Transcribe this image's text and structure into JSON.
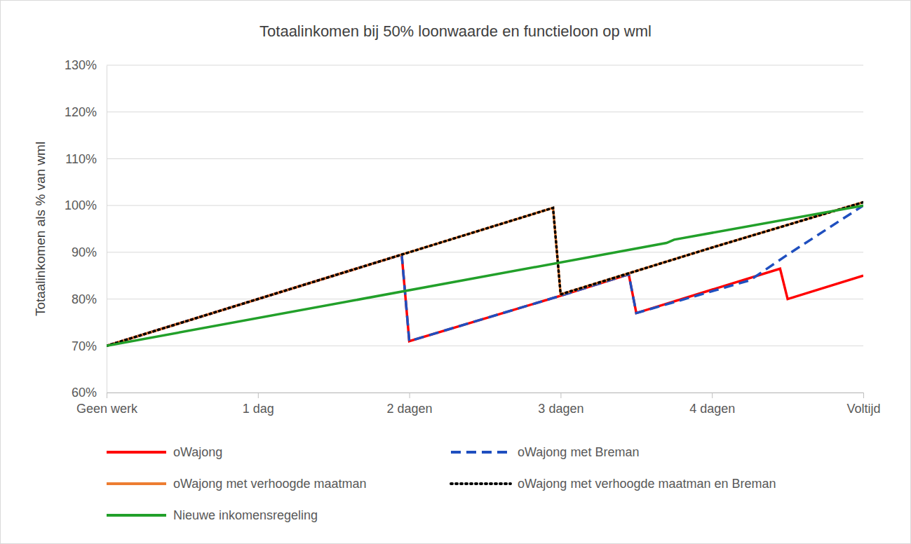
{
  "chart_data": {
    "type": "line",
    "title": "Totaalinkomen bij 50% loonwaarde en functieloon op wml",
    "y_label": "Totaalinkomen als % van wml",
    "xlim": [
      0,
      5
    ],
    "xticks": [
      {
        "value": 0,
        "label": "Geen werk"
      },
      {
        "value": 1,
        "label": "1 dag"
      },
      {
        "value": 2,
        "label": "2 dagen"
      },
      {
        "value": 3,
        "label": "3 dagen"
      },
      {
        "value": 4,
        "label": "4 dagen"
      },
      {
        "value": 5,
        "label": "Voltijd"
      }
    ],
    "ylim": [
      60,
      130
    ],
    "yticks": [
      {
        "value": 60,
        "label": "60%"
      },
      {
        "value": 70,
        "label": "70%"
      },
      {
        "value": 80,
        "label": "80%"
      },
      {
        "value": 90,
        "label": "90%"
      },
      {
        "value": 100,
        "label": "100%"
      },
      {
        "value": 110,
        "label": "110%"
      },
      {
        "value": 120,
        "label": "120%"
      },
      {
        "value": 130,
        "label": "130%"
      }
    ],
    "grid": true,
    "legend": "bottom",
    "series": [
      {
        "name": "oWajong",
        "color": "#ff0000",
        "line_style": "solid",
        "x": [
          0,
          1.95,
          2.0,
          3.0,
          3.45,
          3.5,
          4.0,
          4.45,
          4.5,
          5
        ],
        "values": [
          70,
          89.5,
          71,
          80.7,
          85.3,
          77,
          82,
          86.5,
          80,
          85
        ]
      },
      {
        "name": "oWajong met Breman",
        "color": "#1f4fbf",
        "line_style": "dashed",
        "x": [
          0,
          1.95,
          2.0,
          3.0,
          3.45,
          3.5,
          4.25,
          4.5,
          5
        ],
        "values": [
          70,
          89.5,
          71,
          80.7,
          85.3,
          77,
          84,
          89.5,
          100
        ]
      },
      {
        "name": "oWajong met verhoogde maatman",
        "color": "#ed7d31",
        "line_style": "solid",
        "x": [
          0,
          1.95,
          2.95,
          3.0,
          3.5,
          4.0,
          5
        ],
        "values": [
          70,
          89.5,
          99.5,
          81,
          86,
          91,
          100.7
        ]
      },
      {
        "name": "oWajong met verhoogde maatman en Breman",
        "color": "#000000",
        "line_style": "dotted",
        "x": [
          0,
          1.95,
          2.95,
          3.0,
          3.5,
          4.0,
          5
        ],
        "values": [
          70,
          89.5,
          99.5,
          81,
          86,
          91,
          100.7
        ]
      },
      {
        "name": "Nieuwe inkomensregeling",
        "color": "#22a02a",
        "line_style": "solid",
        "x": [
          0,
          3.7,
          3.75,
          5
        ],
        "values": [
          70,
          92,
          92.7,
          100
        ]
      }
    ]
  }
}
